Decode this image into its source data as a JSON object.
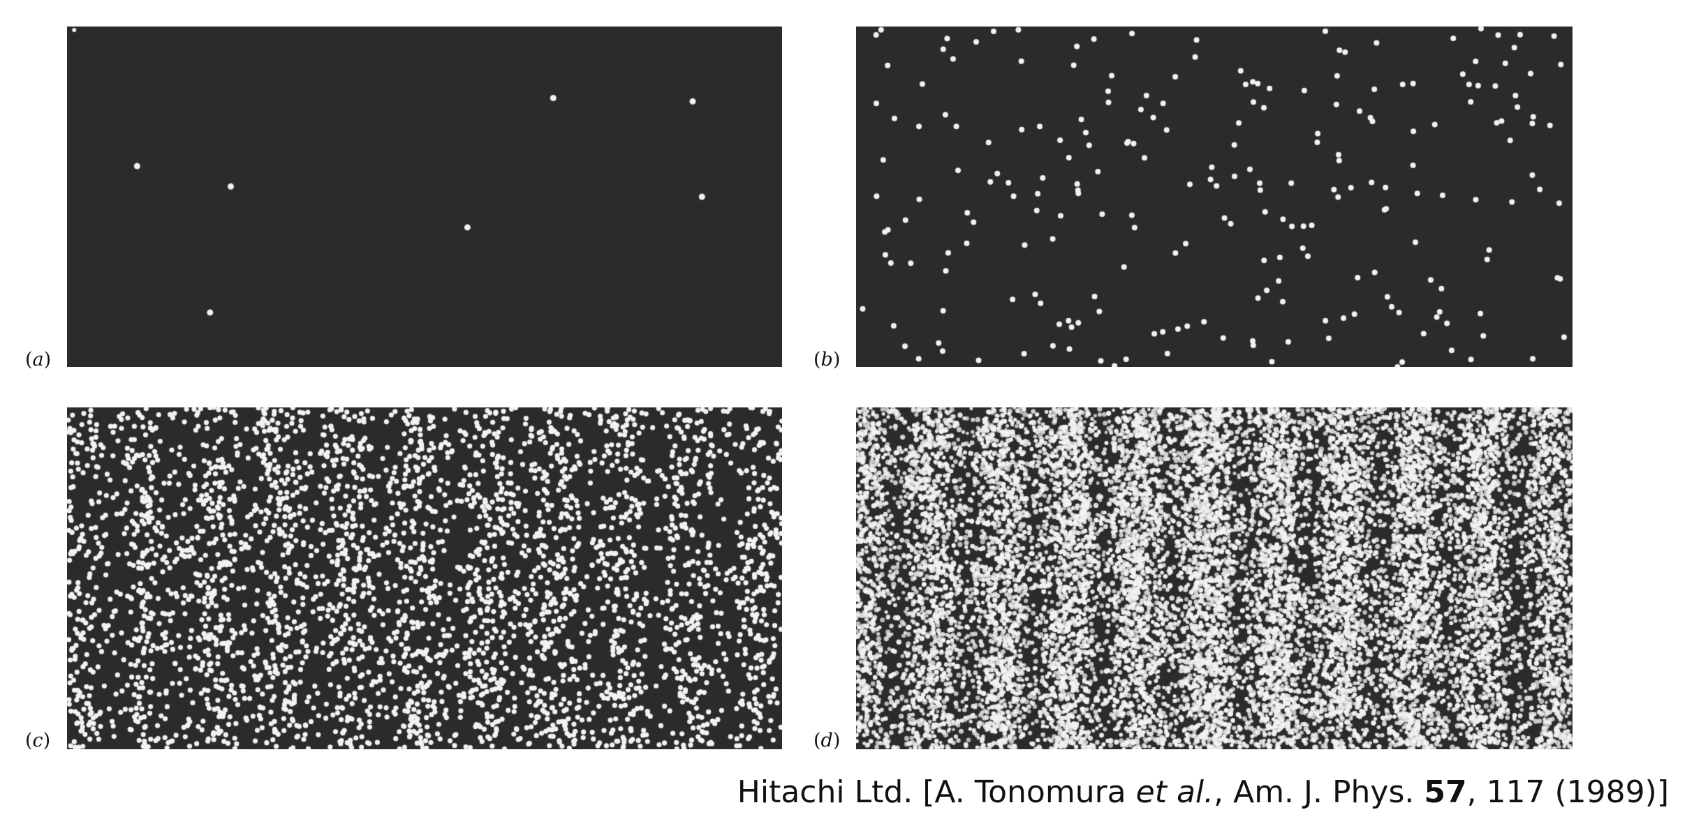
{
  "panels": [
    {
      "id": "a",
      "label_open": "(",
      "label_letter": "a",
      "label_close": ")",
      "dot_count": 8
    },
    {
      "id": "b",
      "label_open": "(",
      "label_letter": "b",
      "label_close": ")",
      "dot_count": 230
    },
    {
      "id": "c",
      "label_open": "(",
      "label_letter": "c",
      "label_close": ")",
      "dot_count": 3400
    },
    {
      "id": "d",
      "label_open": "(",
      "label_letter": "d",
      "label_close": ")",
      "dot_count": 14000
    }
  ],
  "credit": {
    "prefix": "Hitachi Ltd. [A. Tonomura ",
    "etal": "et al.",
    "journal": ", Am. J. Phys. ",
    "volume": "57",
    "suffix": ", 117 (1989)]"
  },
  "colors": {
    "panel_background": "#2b2b2b",
    "dot": "#f2f2f2"
  }
}
